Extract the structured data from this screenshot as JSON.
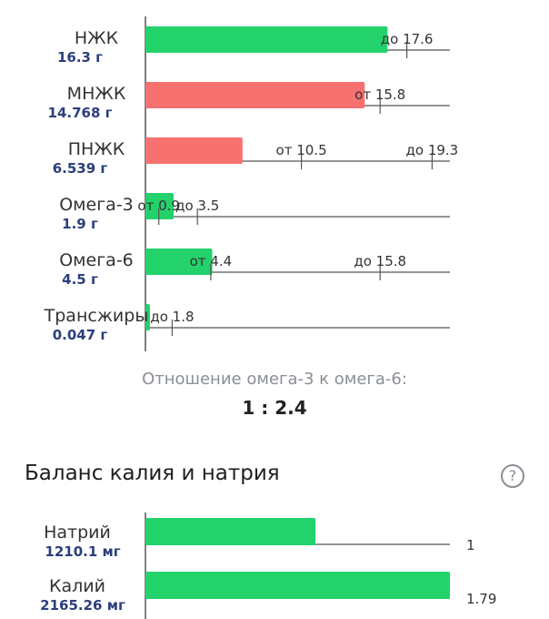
{
  "chart_data": [
    {
      "type": "bar",
      "orientation": "horizontal",
      "colors": {
        "good": "#23d26b",
        "bad": "#f87171",
        "axis": "#555555"
      },
      "xlim": [
        0,
        20.5
      ],
      "rows": [
        {
          "name": "НЖК",
          "amount": "16.3 г",
          "value": 16.3,
          "status": "good",
          "ticks": [
            {
              "label": "до 17.6",
              "value": 17.6
            }
          ]
        },
        {
          "name": "МНЖК",
          "amount": "14.768 г",
          "value": 14.768,
          "status": "bad",
          "ticks": [
            {
              "label": "от 15.8",
              "value": 15.8
            }
          ]
        },
        {
          "name": "ПНЖК",
          "amount": "6.539 г",
          "value": 6.539,
          "status": "bad",
          "ticks": [
            {
              "label": "от 10.5",
              "value": 10.5
            },
            {
              "label": "до 19.3",
              "value": 19.3
            }
          ]
        },
        {
          "name": "Омега-3",
          "amount": "1.9 г",
          "value": 1.9,
          "status": "good",
          "ticks": [
            {
              "label": "от 0.9",
              "value": 0.9
            },
            {
              "label": "до 3.5",
              "value": 3.5
            }
          ]
        },
        {
          "name": "Омега-6",
          "amount": "4.5 г",
          "value": 4.5,
          "status": "good",
          "ticks": [
            {
              "label": "от 4.4",
              "value": 4.4
            },
            {
              "label": "до 15.8",
              "value": 15.8
            }
          ]
        },
        {
          "name": "Трансжиры",
          "amount": "0.047 г",
          "value": 0.047,
          "status": "good",
          "ticks": [
            {
              "label": "до 1.8",
              "value": 1.8
            }
          ]
        }
      ]
    },
    {
      "type": "bar",
      "orientation": "horizontal",
      "title": "Баланс калия и натрия",
      "colors": {
        "good": "#23d26b",
        "axis": "#555555"
      },
      "xlim": [
        0,
        1.79
      ],
      "rows": [
        {
          "name": "Натрий",
          "amount": "1210.1 мг",
          "value": 1,
          "value_label": "1",
          "status": "good"
        },
        {
          "name": "Калий",
          "amount": "2165.26 мг",
          "value": 1.79,
          "value_label": "1.79",
          "status": "good"
        }
      ]
    }
  ],
  "ratio": {
    "caption": "Отношение омега-3 к омега-6:",
    "value": "1 : 2.4"
  },
  "balance": {
    "title": "Баланс калия и натрия",
    "help_icon": "question-circle-icon",
    "help_glyph": "?"
  }
}
